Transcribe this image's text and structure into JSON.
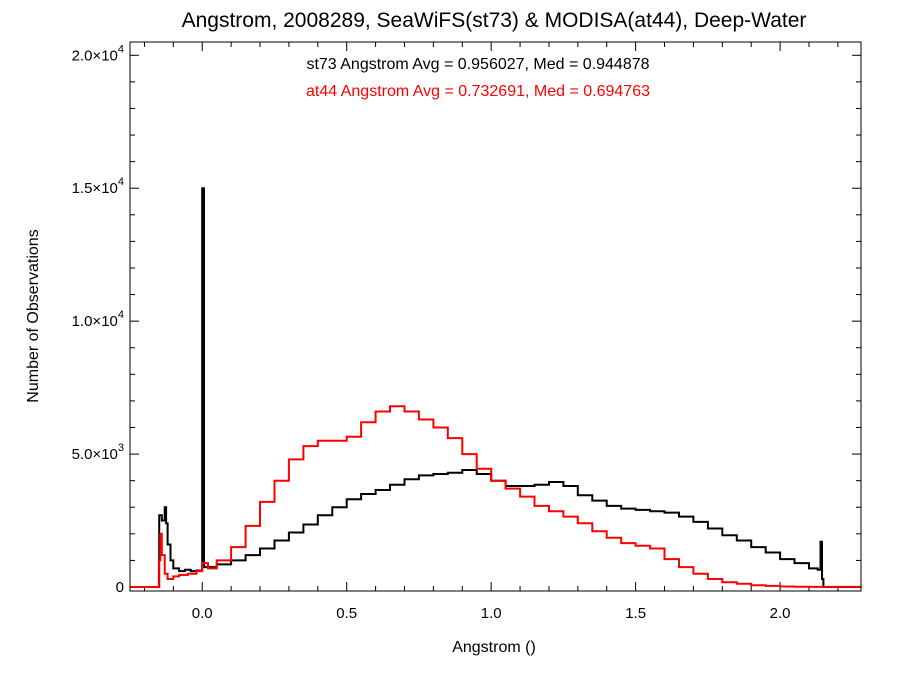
{
  "chart_data": {
    "type": "line",
    "style": "histogram-step",
    "title": "Angstrom, 2008289, SeaWiFS(st73) & MODISA(at44), Deep-Water",
    "xlabel": "Angstrom ()",
    "ylabel": "Number of Observations",
    "xlim": [
      -0.25,
      2.28
    ],
    "ylim": [
      -150,
      20500
    ],
    "grid": false,
    "x_ticks": [
      {
        "value": 0.0,
        "label": "0.0"
      },
      {
        "value": 0.5,
        "label": "0.5"
      },
      {
        "value": 1.0,
        "label": "1.0"
      },
      {
        "value": 1.5,
        "label": "1.5"
      },
      {
        "value": 2.0,
        "label": "2.0"
      }
    ],
    "x_minor_step": 0.1,
    "y_ticks": [
      {
        "value": 0,
        "label": "0",
        "mant": "0",
        "exp": ""
      },
      {
        "value": 5000,
        "label": "5.0×10^3",
        "mant": "5.0×10",
        "exp": "3"
      },
      {
        "value": 10000,
        "label": "1.0×10^4",
        "mant": "1.0×10",
        "exp": "4"
      },
      {
        "value": 15000,
        "label": "1.5×10^4",
        "mant": "1.5×10",
        "exp": "4"
      },
      {
        "value": 20000,
        "label": "2.0×10^4",
        "mant": "2.0×10",
        "exp": "4"
      }
    ],
    "y_minor_step": 1000,
    "annotations": [
      {
        "text": "st73 Angstrom Avg = 0.956027, Med = 0.944878",
        "color": "#000000"
      },
      {
        "text": "at44 Angstrom Avg = 0.732691, Med = 0.694763",
        "color": "#ff0000"
      }
    ],
    "series": [
      {
        "id": "st73",
        "color": "#000000",
        "points": [
          [
            -0.15,
            0
          ],
          [
            -0.149,
            2700
          ],
          [
            -0.14,
            2500
          ],
          [
            -0.13,
            3000
          ],
          [
            -0.125,
            2400
          ],
          [
            -0.12,
            1600
          ],
          [
            -0.11,
            1000
          ],
          [
            -0.1,
            700
          ],
          [
            -0.08,
            600
          ],
          [
            -0.06,
            650
          ],
          [
            -0.04,
            600
          ],
          [
            -0.02,
            620
          ],
          [
            -0.005,
            620
          ],
          [
            0.0,
            15000
          ],
          [
            0.006,
            750
          ],
          [
            0.05,
            850
          ],
          [
            0.1,
            1000
          ],
          [
            0.15,
            1200
          ],
          [
            0.2,
            1450
          ],
          [
            0.25,
            1750
          ],
          [
            0.3,
            2050
          ],
          [
            0.35,
            2350
          ],
          [
            0.4,
            2700
          ],
          [
            0.45,
            3000
          ],
          [
            0.5,
            3300
          ],
          [
            0.55,
            3500
          ],
          [
            0.6,
            3650
          ],
          [
            0.65,
            3850
          ],
          [
            0.7,
            4050
          ],
          [
            0.75,
            4200
          ],
          [
            0.8,
            4250
          ],
          [
            0.85,
            4300
          ],
          [
            0.9,
            4400
          ],
          [
            0.95,
            4250
          ],
          [
            1.0,
            4000
          ],
          [
            1.05,
            3800
          ],
          [
            1.1,
            3800
          ],
          [
            1.15,
            3850
          ],
          [
            1.2,
            3950
          ],
          [
            1.25,
            3800
          ],
          [
            1.3,
            3450
          ],
          [
            1.35,
            3250
          ],
          [
            1.4,
            3050
          ],
          [
            1.45,
            2950
          ],
          [
            1.5,
            2900
          ],
          [
            1.55,
            2850
          ],
          [
            1.6,
            2800
          ],
          [
            1.65,
            2650
          ],
          [
            1.7,
            2450
          ],
          [
            1.75,
            2200
          ],
          [
            1.8,
            1950
          ],
          [
            1.85,
            1750
          ],
          [
            1.9,
            1500
          ],
          [
            1.95,
            1300
          ],
          [
            2.0,
            1050
          ],
          [
            2.05,
            900
          ],
          [
            2.1,
            700
          ],
          [
            2.13,
            650
          ],
          [
            2.14,
            1700
          ],
          [
            2.145,
            300
          ],
          [
            2.15,
            0
          ],
          [
            2.28,
            0
          ]
        ]
      },
      {
        "id": "at44",
        "color": "#ff0000",
        "points": [
          [
            -0.25,
            0
          ],
          [
            -0.155,
            0
          ],
          [
            -0.15,
            1000
          ],
          [
            -0.145,
            2000
          ],
          [
            -0.14,
            1200
          ],
          [
            -0.13,
            500
          ],
          [
            -0.12,
            300
          ],
          [
            -0.1,
            400
          ],
          [
            -0.08,
            450
          ],
          [
            -0.05,
            500
          ],
          [
            -0.02,
            600
          ],
          [
            0.0,
            900
          ],
          [
            0.02,
            700
          ],
          [
            0.05,
            1000
          ],
          [
            0.1,
            1500
          ],
          [
            0.15,
            2300
          ],
          [
            0.2,
            3200
          ],
          [
            0.25,
            4000
          ],
          [
            0.3,
            4800
          ],
          [
            0.35,
            5300
          ],
          [
            0.4,
            5500
          ],
          [
            0.45,
            5500
          ],
          [
            0.5,
            5650
          ],
          [
            0.55,
            6200
          ],
          [
            0.6,
            6600
          ],
          [
            0.65,
            6800
          ],
          [
            0.7,
            6600
          ],
          [
            0.75,
            6300
          ],
          [
            0.8,
            6000
          ],
          [
            0.85,
            5600
          ],
          [
            0.9,
            5000
          ],
          [
            0.95,
            4450
          ],
          [
            1.0,
            4000
          ],
          [
            1.05,
            3700
          ],
          [
            1.1,
            3400
          ],
          [
            1.15,
            3050
          ],
          [
            1.2,
            2850
          ],
          [
            1.25,
            2650
          ],
          [
            1.3,
            2400
          ],
          [
            1.35,
            2100
          ],
          [
            1.4,
            1850
          ],
          [
            1.45,
            1650
          ],
          [
            1.5,
            1550
          ],
          [
            1.55,
            1450
          ],
          [
            1.6,
            1050
          ],
          [
            1.65,
            750
          ],
          [
            1.7,
            500
          ],
          [
            1.75,
            300
          ],
          [
            1.8,
            180
          ],
          [
            1.85,
            120
          ],
          [
            1.9,
            70
          ],
          [
            1.95,
            40
          ],
          [
            2.0,
            20
          ],
          [
            2.05,
            10
          ],
          [
            2.1,
            5
          ],
          [
            2.28,
            0
          ]
        ]
      }
    ]
  }
}
